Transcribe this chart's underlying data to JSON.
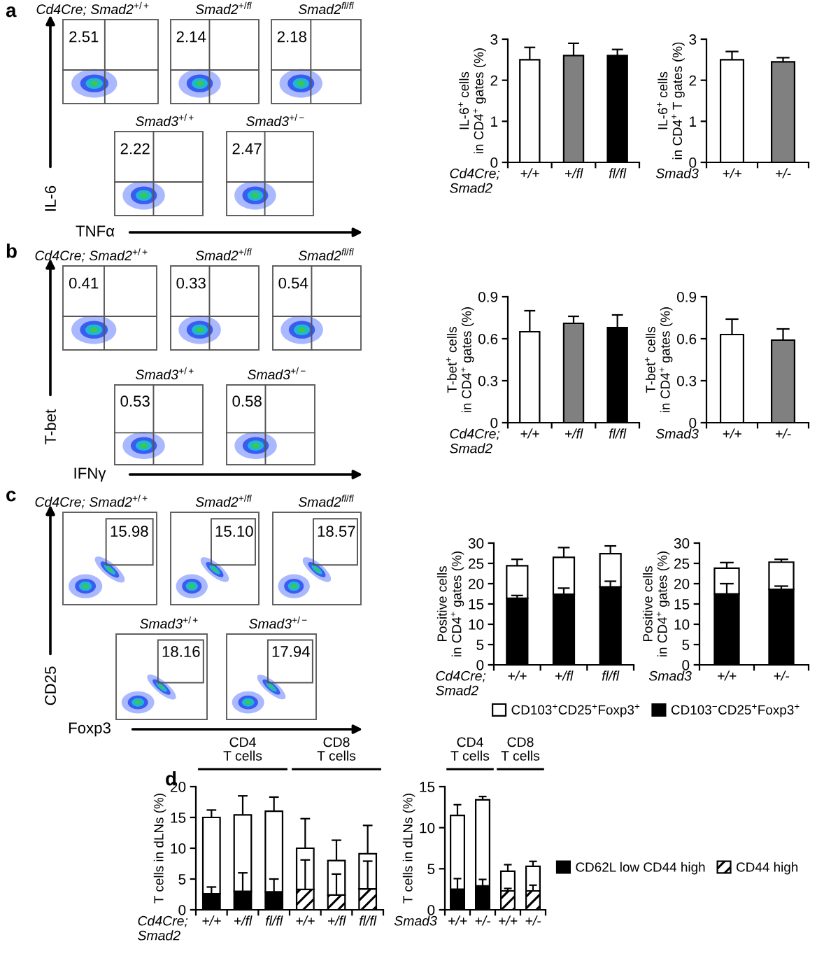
{
  "chart_data": [
    {
      "type": "other",
      "title": "a",
      "xlabel": "TNFα",
      "ylabel": "IL-6",
      "categories": [
        "Cd4Cre; Smad2$^{+/+}$",
        "Smad2$^{+/fl}$",
        "Smad2$^{fl/fl}$",
        "Smad3$^{+/+}$",
        "Smad3$^{+/−}$"
      ],
      "values": [
        2.51,
        2.14,
        2.18,
        2.22,
        2.47
      ],
      "value_labels": [
        "2.51",
        "2.14",
        "2.18",
        "2.22",
        "2.47"
      ]
    },
    {
      "type": "bar",
      "categories": [
        "+/+",
        "+/fl",
        "fl/fl"
      ],
      "values": [
        2.5,
        2.6,
        2.6
      ],
      "errors": [
        [
          2.5,
          2.8
        ],
        [
          2.6,
          2.9
        ],
        [
          2.6,
          2.75
        ]
      ],
      "colors": [
        "#ffffff",
        "#808080",
        "#000000"
      ],
      "ylim": [
        0,
        3
      ],
      "yticks": [
        0,
        1,
        2,
        3
      ],
      "ylabel": "IL-6$^{+}$ cells\nin CD4$^{+}$ gates (%)",
      "xlabel": "Cd4Cre;\nSmad2"
    },
    {
      "type": "bar",
      "categories": [
        "+/+",
        "+/-"
      ],
      "values": [
        2.5,
        2.45
      ],
      "errors": [
        [
          2.5,
          2.7
        ],
        [
          2.45,
          2.55
        ]
      ],
      "colors": [
        "#ffffff",
        "#808080"
      ],
      "ylim": [
        0,
        3
      ],
      "yticks": [
        0,
        1,
        2,
        3
      ],
      "ylabel": "IL-6$^{+}$ cells\nin CD4$^{+}$ T gates (%)",
      "xlabel": "Smad3"
    },
    {
      "type": "other",
      "title": "b",
      "xlabel": "IFNγ",
      "ylabel": "T-bet",
      "categories": [
        "Cd4Cre; Smad2$^{+/+}$",
        "Smad2$^{+/fl}$",
        "Smad2$^{fl/fl}$",
        "Smad3$^{+/+}$",
        "Smad3$^{+/−}$"
      ],
      "values": [
        0.41,
        0.33,
        0.54,
        0.53,
        0.58
      ],
      "value_labels": [
        "0.41",
        "0.33",
        "0.54",
        "0.53",
        "0.58"
      ]
    },
    {
      "type": "bar",
      "categories": [
        "+/+",
        "+/fl",
        "fl/fl"
      ],
      "values": [
        0.65,
        0.71,
        0.68
      ],
      "errors": [
        [
          0.65,
          0.8
        ],
        [
          0.71,
          0.76
        ],
        [
          0.68,
          0.77
        ]
      ],
      "colors": [
        "#ffffff",
        "#808080",
        "#000000"
      ],
      "ylim": [
        0,
        0.9
      ],
      "yticks": [
        0,
        0.3,
        0.6,
        0.9
      ],
      "ylabel": "T-bet$^{+}$ cells\nin CD4$^{+}$ gates (%)",
      "xlabel": "Cd4Cre;\nSmad2"
    },
    {
      "type": "bar",
      "categories": [
        "+/+",
        "+/-"
      ],
      "values": [
        0.63,
        0.59
      ],
      "errors": [
        [
          0.63,
          0.74
        ],
        [
          0.59,
          0.67
        ]
      ],
      "colors": [
        "#ffffff",
        "#808080"
      ],
      "ylim": [
        0,
        0.9
      ],
      "yticks": [
        0,
        0.3,
        0.6,
        0.9
      ],
      "ylabel": "T-bet$^{+}$ cells\nin CD4$^{+}$ gates (%)",
      "xlabel": "Smad3"
    },
    {
      "type": "other",
      "title": "c",
      "xlabel": "Foxp3",
      "ylabel": "CD25",
      "categories": [
        "Cd4Cre; Smad2$^{+/+}$",
        "Smad2$^{+/fl}$",
        "Smad2$^{fl/fl}$",
        "Smad3$^{+/+}$",
        "Smad3$^{+/−}$"
      ],
      "values": [
        15.98,
        15.1,
        18.57,
        18.16,
        17.94
      ],
      "value_labels": [
        "15.98",
        "15.10",
        "18.57",
        "18.16",
        "17.94"
      ]
    },
    {
      "type": "bar",
      "stacked": true,
      "categories": [
        "+/+",
        "+/fl",
        "fl/fl"
      ],
      "series": [
        {
          "name": "CD103$^{−}$CD25$^{+}$Foxp3$^{+}$",
          "color": "#000000",
          "values": [
            16.4,
            17.4,
            19.2
          ],
          "errors": [
            [
              16.4,
              17.1
            ],
            [
              17.4,
              18.9
            ],
            [
              19.2,
              20.6
            ]
          ]
        },
        {
          "name": "CD103$^{+}$CD25$^{+}$Foxp3$^{+}$",
          "color": "#ffffff",
          "values": [
            8.0,
            9.1,
            8.2
          ],
          "errors": [
            [
              24.4,
              26.0
            ],
            [
              26.5,
              28.9
            ],
            [
              27.4,
              29.3
            ]
          ]
        }
      ],
      "ylim": [
        0,
        30
      ],
      "yticks": [
        0,
        5,
        10,
        15,
        20,
        25,
        30
      ],
      "ylabel": "Positive cells\nin CD4$^{+}$ gates (%)",
      "xlabel": "Cd4Cre;\nSmad2",
      "legend": "bottom"
    },
    {
      "type": "bar",
      "stacked": true,
      "categories": [
        "+/+",
        "+/-"
      ],
      "series": [
        {
          "color": "#000000",
          "values": [
            17.5,
            18.6
          ],
          "errors": [
            [
              17.5,
              20.0
            ],
            [
              18.6,
              19.4
            ]
          ]
        },
        {
          "color": "#ffffff",
          "values": [
            6.3,
            6.7
          ],
          "errors": [
            [
              23.8,
              25.2
            ],
            [
              25.3,
              26.0
            ]
          ]
        }
      ],
      "ylim": [
        0,
        30
      ],
      "yticks": [
        0,
        5,
        10,
        15,
        20,
        25,
        30
      ],
      "ylabel": "Positive cells\nin CD4$^{+}$ gates (%)",
      "xlabel": "Smad3"
    },
    {
      "type": "bar",
      "stacked": true,
      "title": "d",
      "categories": [
        "+/+",
        "+/fl",
        "fl/fl",
        "+/+",
        "+/fl",
        "fl/fl"
      ],
      "series": [
        {
          "color": "#000000",
          "values": [
            2.6,
            3.0,
            2.9,
            null,
            null,
            null
          ],
          "errors": [
            [
              2.6,
              3.7
            ],
            [
              3.0,
              6.0
            ],
            [
              2.9,
              5.0
            ],
            null,
            null,
            null
          ]
        },
        {
          "color": "#000000",
          "values": [
            null,
            null,
            null,
            3.3,
            2.4,
            3.4
          ],
          "errors": [
            null,
            null,
            null,
            [
              3.3,
              8.1
            ],
            [
              2.4,
              5.8
            ],
            [
              3.4,
              7.9
            ]
          ]
        },
        {
          "color": "#ffffff",
          "values": [
            12.4,
            12.4,
            13.1,
            6.7,
            5.6,
            5.7
          ],
          "errors": [
            [
              15.0,
              16.2
            ],
            [
              15.4,
              18.5
            ],
            [
              16.0,
              18.3
            ],
            [
              10.0,
              14.8
            ],
            [
              8.0,
              11.3
            ],
            [
              9.1,
              13.7
            ]
          ]
        }
      ],
      "ylim": [
        0,
        20
      ],
      "yticks": [
        0,
        5,
        10,
        15,
        20
      ],
      "ylabel": "T cells in dLNs (%)",
      "xlabel": "Cd4Cre;\nSmad2",
      "annotations": [
        "CD4\nT cells",
        "CD8\nT cells"
      ]
    },
    {
      "type": "bar",
      "stacked": true,
      "categories": [
        "+/+",
        "+/-",
        "+/+",
        "+/-"
      ],
      "series": [
        {
          "name": "CD62L low CD44 high",
          "color": "#000000",
          "values": [
            2.5,
            2.9,
            null,
            null
          ],
          "errors": [
            [
              2.5,
              3.8
            ],
            [
              2.9,
              3.7
            ],
            null,
            null
          ]
        },
        {
          "name": "CD44 high",
          "color": "#000000",
          "values": [
            null,
            null,
            2.3,
            2.3
          ],
          "errors": [
            null,
            null,
            [
              2.3,
              2.6
            ],
            [
              2.3,
              3.0
            ]
          ]
        },
        {
          "color": "#ffffff",
          "values": [
            9.0,
            10.5,
            2.4,
            3.0
          ],
          "errors": [
            [
              11.5,
              12.8
            ],
            [
              13.4,
              13.8
            ],
            [
              4.7,
              5.5
            ],
            [
              5.3,
              5.9
            ]
          ]
        }
      ],
      "ylim": [
        0,
        15
      ],
      "yticks": [
        0,
        5,
        10,
        15
      ],
      "ylabel": "T cells in dLNs (%)",
      "xlabel": "Smad3",
      "annotations": [
        "CD4\nT cells",
        "CD8\nT cells"
      ],
      "legend": "right"
    }
  ]
}
